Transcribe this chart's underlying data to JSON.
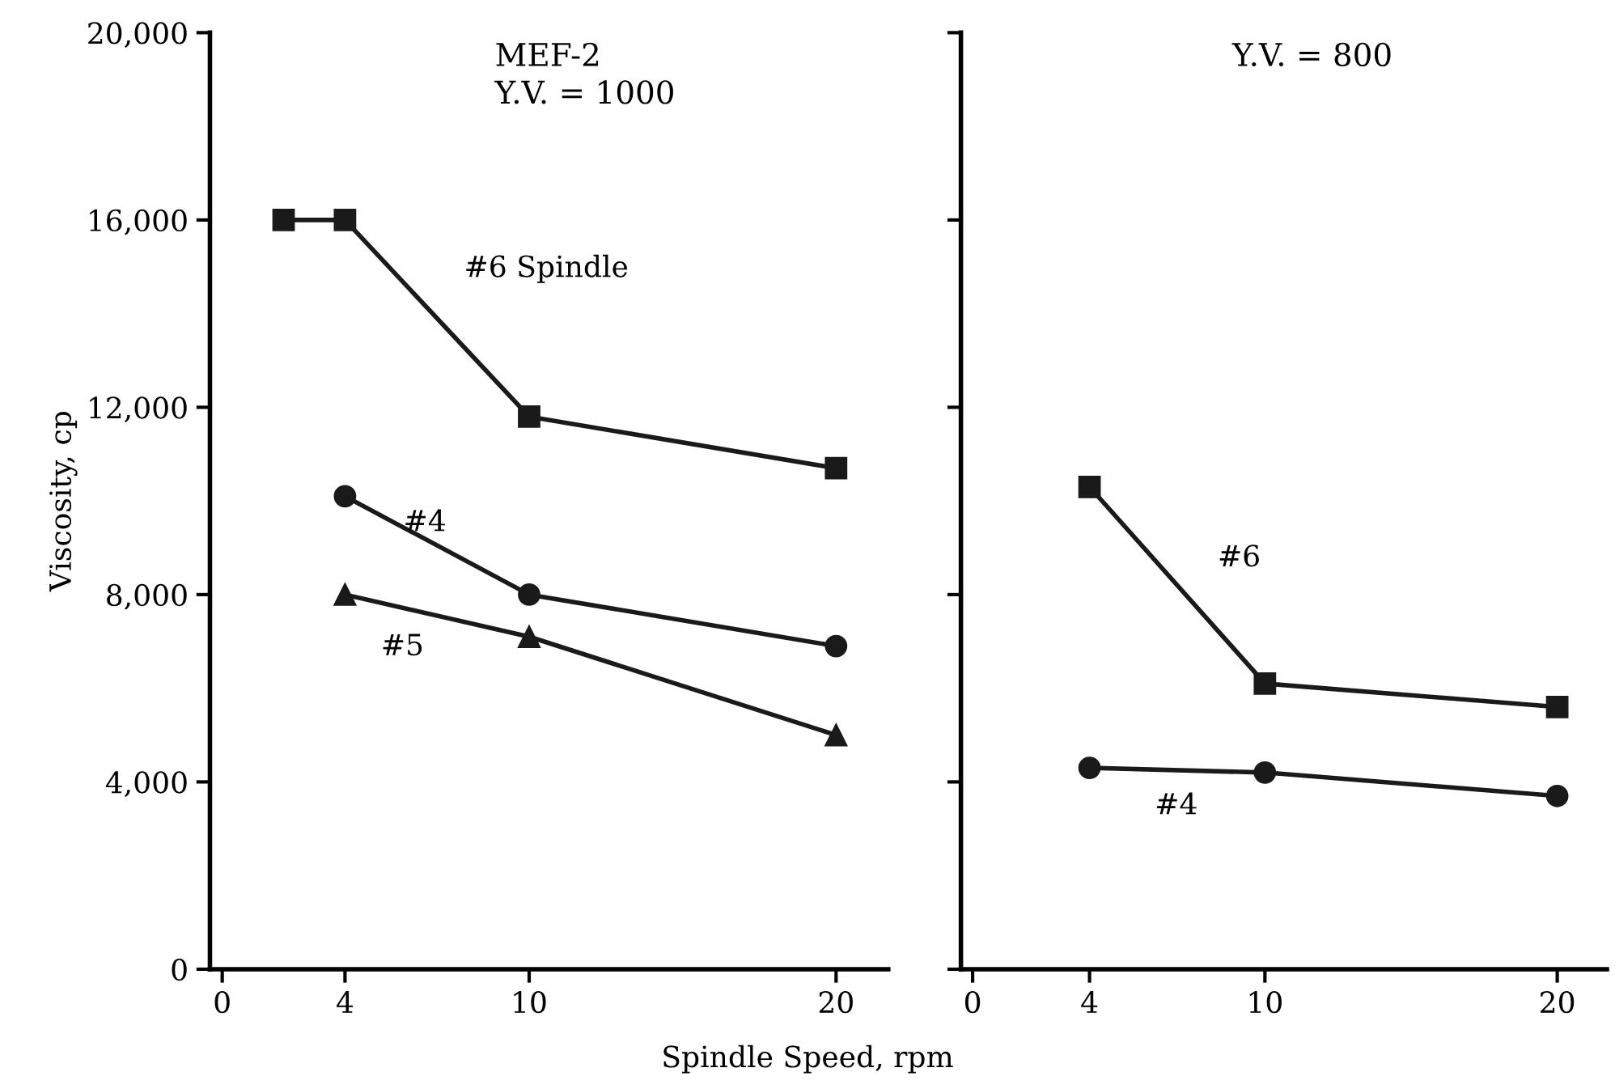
{
  "chart_data": [
    {
      "type": "line",
      "title": "MEF-2",
      "subtitle": "Y.V. = 1000",
      "ylabel": "Viscosity, cp",
      "xlabel": "Spindle Speed, rpm",
      "xlim": [
        -0.4,
        21.7
      ],
      "ylim": [
        0,
        20000
      ],
      "xticks": [
        0,
        4,
        10,
        20
      ],
      "yticks": [
        {
          "value": 0,
          "label": "0"
        },
        {
          "value": 4000,
          "label": "4,000"
        },
        {
          "value": 8000,
          "label": "8,000"
        },
        {
          "value": 12000,
          "label": "12,000"
        },
        {
          "value": 16000,
          "label": "16,000"
        },
        {
          "value": 20000,
          "label": "20,000"
        }
      ],
      "grid": false,
      "legend": false,
      "line_style": "solid",
      "series": [
        {
          "name": "#6 Spindle",
          "color": "#1a1a1a",
          "marker": "square",
          "x": [
            2,
            4,
            10,
            20
          ],
          "values": [
            16000,
            16000,
            11800,
            10700
          ]
        },
        {
          "name": "#4",
          "color": "#1a1a1a",
          "marker": "circle",
          "x": [
            4,
            10,
            20
          ],
          "values": [
            10100,
            8000,
            6900
          ]
        },
        {
          "name": "#5",
          "color": "#1a1a1a",
          "marker": "triangle",
          "x": [
            4,
            10,
            20
          ],
          "values": [
            8000,
            7100,
            5000
          ]
        }
      ]
    },
    {
      "type": "line",
      "subtitle": "Y.V. = 800",
      "xlim": [
        -0.4,
        21.7
      ],
      "ylim": [
        0,
        20000
      ],
      "xticks": [
        0,
        4,
        10,
        20
      ],
      "yticks": [
        {
          "value": 0,
          "label": null
        },
        {
          "value": 4000,
          "label": null
        },
        {
          "value": 8000,
          "label": null
        },
        {
          "value": 12000,
          "label": null
        },
        {
          "value": 16000,
          "label": null
        },
        {
          "value": 20000,
          "label": null
        }
      ],
      "tick_labels": "x",
      "grid": false,
      "legend": false,
      "line_style": "solid",
      "series": [
        {
          "name": "#6",
          "color": "#1a1a1a",
          "marker": "square",
          "x": [
            4,
            10,
            20
          ],
          "values": [
            10300,
            6100,
            5600
          ]
        },
        {
          "name": "#4",
          "color": "#1a1a1a",
          "marker": "circle",
          "x": [
            4,
            10,
            20
          ],
          "values": [
            4300,
            4200,
            3700
          ]
        }
      ]
    }
  ]
}
